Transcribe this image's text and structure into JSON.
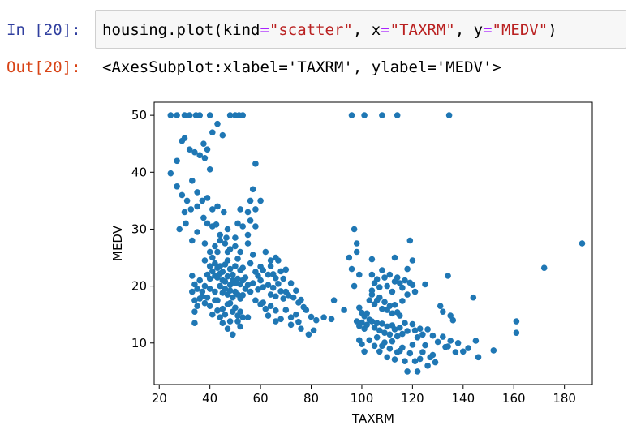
{
  "cell_in": {
    "prompt": "In [20]:",
    "code": {
      "prefix": "housing.plot(kind",
      "eq1": "=",
      "kind_val": "\"scatter\"",
      "sep1": ", x",
      "eq2": "=",
      "x_val": "\"TAXRM\"",
      "sep2": ", y",
      "eq3": "=",
      "y_val": "\"MEDV\"",
      "suffix": ")"
    }
  },
  "cell_out": {
    "prompt": "Out[20]:",
    "text": "<AxesSubplot:xlabel='TAXRM', ylabel='MEDV'>"
  },
  "colors": {
    "point": "#1f77b4",
    "axis": "#000000"
  },
  "chart_data": {
    "type": "scatter",
    "xlabel": "TAXRM",
    "ylabel": "MEDV",
    "xlim": [
      18,
      191
    ],
    "ylim": [
      2.7,
      52.3
    ],
    "xticks": [
      "20",
      "40",
      "60",
      "80",
      "100",
      "120",
      "140",
      "160",
      "180"
    ],
    "yticks": [
      "10",
      "20",
      "30",
      "40",
      "50"
    ],
    "points": [
      [
        24.5,
        50
      ],
      [
        27,
        50
      ],
      [
        30,
        50
      ],
      [
        32,
        50
      ],
      [
        34.5,
        50
      ],
      [
        36,
        50
      ],
      [
        40,
        50
      ],
      [
        48,
        50
      ],
      [
        50,
        50
      ],
      [
        51.5,
        50
      ],
      [
        53,
        50
      ],
      [
        96,
        50
      ],
      [
        101,
        50
      ],
      [
        108,
        50
      ],
      [
        114,
        50
      ],
      [
        134.5,
        50
      ],
      [
        24.5,
        39.8
      ],
      [
        27,
        37.5
      ],
      [
        29,
        36
      ],
      [
        31,
        35
      ],
      [
        33,
        38.5
      ],
      [
        35,
        36.5
      ],
      [
        37,
        35
      ],
      [
        30,
        33
      ],
      [
        32.5,
        33.5
      ],
      [
        35,
        34
      ],
      [
        37.5,
        32
      ],
      [
        39,
        35.5
      ],
      [
        41,
        33.5
      ],
      [
        43,
        34
      ],
      [
        45.5,
        33
      ],
      [
        47,
        30
      ],
      [
        46.5,
        28.5
      ],
      [
        29,
        45.5
      ],
      [
        30,
        46
      ],
      [
        32,
        44
      ],
      [
        34,
        43.5
      ],
      [
        36,
        43
      ],
      [
        37.5,
        45
      ],
      [
        39,
        44
      ],
      [
        41,
        47
      ],
      [
        43,
        48.5
      ],
      [
        45,
        46.5
      ],
      [
        28,
        30
      ],
      [
        30.5,
        31
      ],
      [
        33,
        28
      ],
      [
        35,
        29.5
      ],
      [
        39,
        31
      ],
      [
        41,
        30.5
      ],
      [
        42.5,
        30.8
      ],
      [
        44,
        29
      ],
      [
        38,
        42.5
      ],
      [
        40,
        40.5
      ],
      [
        27,
        42
      ],
      [
        38,
        27.5
      ],
      [
        40,
        26
      ],
      [
        42,
        27
      ],
      [
        44,
        28
      ],
      [
        46,
        27.5
      ],
      [
        48,
        26.5
      ],
      [
        50,
        27
      ],
      [
        52,
        26
      ],
      [
        41,
        25
      ],
      [
        43,
        26
      ],
      [
        47,
        26
      ],
      [
        50,
        28.5
      ],
      [
        51,
        31
      ],
      [
        53,
        30.5
      ],
      [
        55,
        29
      ],
      [
        56,
        31.5
      ],
      [
        58,
        30.5
      ],
      [
        58,
        41.5
      ],
      [
        57,
        37
      ],
      [
        56,
        35
      ],
      [
        58,
        33.5
      ],
      [
        60,
        35
      ],
      [
        55,
        33
      ],
      [
        52,
        33.5
      ],
      [
        38,
        24.5
      ],
      [
        40,
        23.5
      ],
      [
        42,
        24
      ],
      [
        43,
        23.2
      ],
      [
        44,
        23.5
      ],
      [
        45,
        22.5
      ],
      [
        46,
        23.8
      ],
      [
        47,
        24.5
      ],
      [
        48,
        23
      ],
      [
        49,
        22
      ],
      [
        50,
        23.5
      ],
      [
        51,
        24.8
      ],
      [
        52,
        22.8
      ],
      [
        53,
        23.2
      ],
      [
        54,
        21.5
      ],
      [
        39,
        22
      ],
      [
        40,
        21.3
      ],
      [
        41,
        22.6
      ],
      [
        42,
        21.8
      ],
      [
        43,
        21.5
      ],
      [
        44,
        22.2
      ],
      [
        45,
        21
      ],
      [
        46,
        20.8
      ],
      [
        47,
        21.7
      ],
      [
        48,
        20.2
      ],
      [
        49,
        21
      ],
      [
        50,
        20.5
      ],
      [
        51,
        21.3
      ],
      [
        52,
        20.3
      ],
      [
        53,
        21
      ],
      [
        54,
        19.5
      ],
      [
        55,
        20.2
      ],
      [
        56,
        19
      ],
      [
        44,
        20
      ],
      [
        45,
        18.8
      ],
      [
        46,
        19.5
      ],
      [
        47,
        18.5
      ],
      [
        48,
        19.2
      ],
      [
        49,
        18
      ],
      [
        50,
        19
      ],
      [
        51,
        18.5
      ],
      [
        52,
        17.8
      ],
      [
        53,
        18.4
      ],
      [
        33,
        21.8
      ],
      [
        34,
        20.3
      ],
      [
        35,
        19.5
      ],
      [
        36,
        21
      ],
      [
        37,
        19
      ],
      [
        38,
        20
      ],
      [
        33,
        19
      ],
      [
        34,
        17.5
      ],
      [
        35,
        16.5
      ],
      [
        36,
        17.8
      ],
      [
        37,
        18.2
      ],
      [
        38,
        17
      ],
      [
        40,
        16.5
      ],
      [
        42,
        17.5
      ],
      [
        43,
        15.7
      ],
      [
        45,
        16
      ],
      [
        46,
        15
      ],
      [
        47,
        16.8
      ],
      [
        48,
        17
      ],
      [
        49,
        15.5
      ],
      [
        50,
        16.2
      ],
      [
        51,
        14.8
      ],
      [
        52,
        15.5
      ],
      [
        53,
        14.5
      ],
      [
        44,
        14.5
      ],
      [
        45,
        13.5
      ],
      [
        47,
        12.5
      ],
      [
        48,
        13.8
      ],
      [
        49,
        11.5
      ],
      [
        51,
        13.8
      ],
      [
        52,
        12.9
      ],
      [
        55,
        14.5
      ],
      [
        41,
        15
      ],
      [
        34,
        15.5
      ],
      [
        34,
        13.5
      ],
      [
        43,
        17.5
      ],
      [
        42,
        19
      ],
      [
        39,
        18
      ],
      [
        40,
        19.5
      ],
      [
        56,
        24
      ],
      [
        58,
        22.5
      ],
      [
        59,
        21.8
      ],
      [
        60,
        23.4
      ],
      [
        61,
        22.8
      ],
      [
        63,
        22
      ],
      [
        64,
        23.5
      ],
      [
        65,
        22.1
      ],
      [
        66,
        21.4
      ],
      [
        67,
        24.5
      ],
      [
        68,
        22.6
      ],
      [
        69,
        21.3
      ],
      [
        70,
        22.9
      ],
      [
        57,
        20.5
      ],
      [
        59,
        19.4
      ],
      [
        61,
        19.8
      ],
      [
        63,
        20.2
      ],
      [
        64,
        18.5
      ],
      [
        65,
        19.7
      ],
      [
        66,
        18.2
      ],
      [
        67,
        20.4
      ],
      [
        68,
        19.1
      ],
      [
        69,
        17.8
      ],
      [
        70,
        19
      ],
      [
        71,
        18.4
      ],
      [
        72,
        20.5
      ],
      [
        73,
        18
      ],
      [
        74,
        19.2
      ],
      [
        75,
        17.1
      ],
      [
        76,
        17.6
      ],
      [
        77,
        16.3
      ],
      [
        58,
        17.5
      ],
      [
        60,
        16.8
      ],
      [
        61,
        17.1
      ],
      [
        62,
        16
      ],
      [
        63,
        14.8
      ],
      [
        64,
        16.5
      ],
      [
        66,
        15.7
      ],
      [
        68,
        14.2
      ],
      [
        70,
        15.8
      ],
      [
        72,
        14.5
      ],
      [
        74,
        15
      ],
      [
        75,
        13.7
      ],
      [
        78,
        15.8
      ],
      [
        80,
        14.6
      ],
      [
        82,
        14
      ],
      [
        76,
        12.5
      ],
      [
        79,
        11.5
      ],
      [
        81,
        12.2
      ],
      [
        85,
        14.5
      ],
      [
        88,
        14.2
      ],
      [
        89,
        17.5
      ],
      [
        93,
        15.8
      ],
      [
        66,
        13.8
      ],
      [
        72,
        13.2
      ],
      [
        66,
        25
      ],
      [
        64,
        24.5
      ],
      [
        60,
        21
      ],
      [
        57,
        25.5
      ],
      [
        62,
        26
      ],
      [
        55,
        27.5
      ],
      [
        97,
        30
      ],
      [
        98,
        27.5
      ],
      [
        95,
        25
      ],
      [
        96,
        23
      ],
      [
        99,
        22
      ],
      [
        97,
        20
      ],
      [
        104,
        24.7
      ],
      [
        104,
        22
      ],
      [
        105,
        20.5
      ],
      [
        106,
        21.2
      ],
      [
        107,
        19.8
      ],
      [
        108,
        22.8
      ],
      [
        109,
        21.5
      ],
      [
        110,
        20
      ],
      [
        111,
        22
      ],
      [
        112,
        19
      ],
      [
        113,
        20.8
      ],
      [
        114,
        21.5
      ],
      [
        115,
        20.5
      ],
      [
        116,
        19.7
      ],
      [
        117,
        21
      ],
      [
        118,
        18.5
      ],
      [
        119,
        20.6
      ],
      [
        118,
        23
      ],
      [
        120,
        20.2
      ],
      [
        121,
        19
      ],
      [
        119,
        28
      ],
      [
        125,
        20.3
      ],
      [
        103,
        17.5
      ],
      [
        104,
        18.5
      ],
      [
        105,
        16.8
      ],
      [
        106,
        17.5
      ],
      [
        107,
        18
      ],
      [
        108,
        16
      ],
      [
        109,
        17.2
      ],
      [
        110,
        15.8
      ],
      [
        111,
        16.5
      ],
      [
        112,
        15.2
      ],
      [
        113,
        16.7
      ],
      [
        114,
        15.4
      ],
      [
        115,
        14.8
      ],
      [
        99,
        16.2
      ],
      [
        100,
        15.3
      ],
      [
        101,
        14.7
      ],
      [
        102,
        15.2
      ],
      [
        103,
        14.1
      ],
      [
        98,
        13.8
      ],
      [
        99,
        13
      ],
      [
        100,
        13.6
      ],
      [
        101,
        12.5
      ],
      [
        102,
        13.2
      ],
      [
        104,
        13.8
      ],
      [
        105,
        12.7
      ],
      [
        106,
        13.5
      ],
      [
        107,
        12.2
      ],
      [
        108,
        13.4
      ],
      [
        109,
        11.8
      ],
      [
        110,
        12.9
      ],
      [
        111,
        11.5
      ],
      [
        112,
        13.1
      ],
      [
        113,
        12.4
      ],
      [
        114,
        11.2
      ],
      [
        115,
        12.7
      ],
      [
        116,
        11.6
      ],
      [
        117,
        13.5
      ],
      [
        118,
        12.1
      ],
      [
        120,
        13.3
      ],
      [
        121,
        12.2
      ],
      [
        122,
        11
      ],
      [
        123,
        12.5
      ],
      [
        124,
        11.5
      ],
      [
        126,
        12.4
      ],
      [
        128,
        11.3
      ],
      [
        130,
        10.2
      ],
      [
        131,
        16.5
      ],
      [
        132,
        15.5
      ],
      [
        99,
        10.5
      ],
      [
        100,
        9.8
      ],
      [
        101,
        8.5
      ],
      [
        103,
        10.5
      ],
      [
        105,
        9.5
      ],
      [
        106,
        11
      ],
      [
        107,
        8.5
      ],
      [
        108,
        9.5
      ],
      [
        109,
        10.1
      ],
      [
        110,
        7.5
      ],
      [
        111,
        9
      ],
      [
        112,
        10.3
      ],
      [
        113,
        7.1
      ],
      [
        114,
        8.4
      ],
      [
        115,
        8.6
      ],
      [
        116,
        9.2
      ],
      [
        117,
        6.8
      ],
      [
        118,
        5
      ],
      [
        119,
        8.2
      ],
      [
        120,
        9.7
      ],
      [
        121,
        6.8
      ],
      [
        122,
        5
      ],
      [
        123,
        7.2
      ],
      [
        124,
        8.4
      ],
      [
        125,
        9.6
      ],
      [
        127,
        7.5
      ],
      [
        129,
        6.6
      ],
      [
        132,
        11.1
      ],
      [
        134,
        9.4
      ],
      [
        135,
        10.4
      ],
      [
        136,
        14
      ],
      [
        137,
        8.4
      ],
      [
        138,
        10
      ],
      [
        140,
        8.5
      ],
      [
        142,
        9.1
      ],
      [
        144,
        18
      ],
      [
        145,
        10.4
      ],
      [
        146,
        7.5
      ],
      [
        152,
        8.7
      ],
      [
        161,
        11.8
      ],
      [
        161,
        13.8
      ],
      [
        133,
        9.3
      ],
      [
        134,
        21.8
      ],
      [
        128,
        7.9
      ],
      [
        135,
        14.8
      ],
      [
        126,
        6
      ],
      [
        172,
        23.2
      ],
      [
        187,
        27.5
      ],
      [
        120,
        24.5
      ],
      [
        98,
        26
      ],
      [
        104,
        19.2
      ],
      [
        116,
        17.4
      ],
      [
        113,
        25
      ]
    ]
  }
}
